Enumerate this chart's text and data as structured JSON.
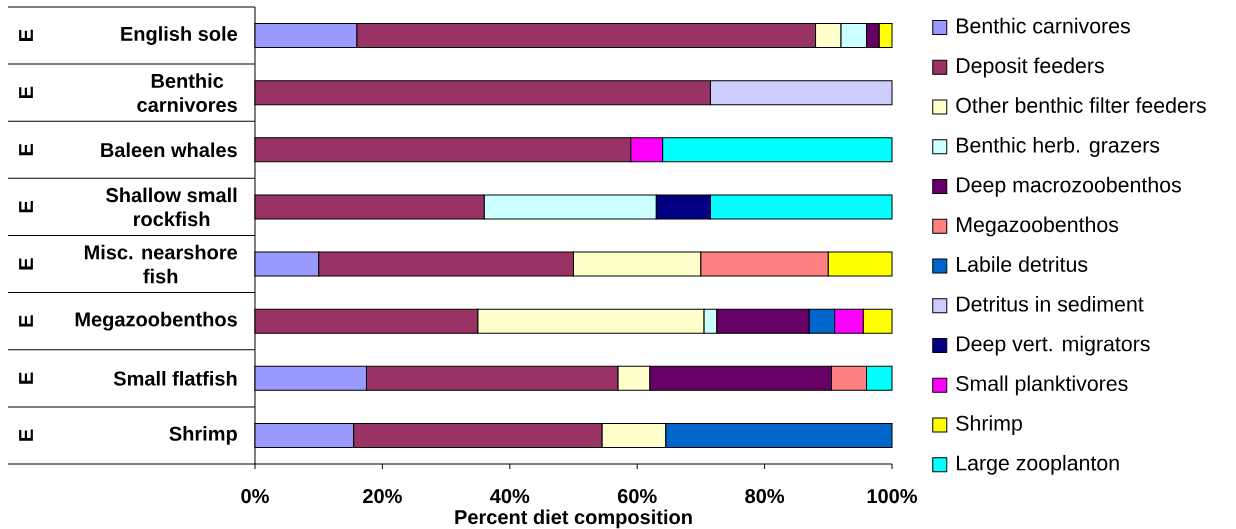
{
  "chart_data": {
    "type": "bar",
    "orientation": "horizontal",
    "stacked": true,
    "xlabel": "Percent diet composition",
    "categories": [
      "English sole",
      "Benthic carnivores",
      "Baleen whales",
      "Shallow small rockfish",
      "Misc. nearshore fish",
      "Megazoobenthos",
      "Small flatfish",
      "Shrimp"
    ],
    "series": [
      {
        "name": "Benthic carnivores",
        "color": "#9999ff",
        "values": [
          16,
          null,
          null,
          null,
          10,
          null,
          17.5,
          15.5
        ]
      },
      {
        "name": "Deposit feeders",
        "color": "#993366",
        "values": [
          72,
          71.5,
          59,
          36,
          40,
          35,
          39.5,
          39
        ]
      },
      {
        "name": "Other benthic filter feeders",
        "color": "#ffffcc",
        "values": [
          4,
          null,
          null,
          null,
          20,
          35.5,
          5,
          10
        ]
      },
      {
        "name": "Benthic herb. grazers",
        "color": "#ccffff",
        "values": [
          4,
          null,
          null,
          27,
          null,
          2,
          null,
          null
        ]
      },
      {
        "name": "Deep macrozoobenthos",
        "color": "#660066",
        "values": [
          2,
          null,
          null,
          null,
          null,
          14.5,
          28.5,
          null
        ]
      },
      {
        "name": "Megazoobenthos",
        "color": "#ff8080",
        "values": [
          null,
          null,
          null,
          null,
          20,
          null,
          5.5,
          null
        ]
      },
      {
        "name": "Labile detritus",
        "color": "#0066cc",
        "values": [
          null,
          null,
          null,
          null,
          null,
          4,
          null,
          35.5
        ]
      },
      {
        "name": "Detritus in sediment",
        "color": "#ccccff",
        "values": [
          null,
          28.5,
          null,
          null,
          null,
          null,
          null,
          null
        ]
      },
      {
        "name": "Deep vert. migrators",
        "color": "#000080",
        "values": [
          null,
          null,
          null,
          8.5,
          null,
          null,
          null,
          null
        ]
      },
      {
        "name": "Small planktivores",
        "color": "#ff00ff",
        "values": [
          null,
          null,
          5,
          null,
          null,
          4.5,
          null,
          null
        ]
      },
      {
        "name": "Shrimp",
        "color": "#ffff00",
        "values": [
          2,
          null,
          null,
          null,
          10,
          4.5,
          null,
          null
        ]
      },
      {
        "name": "Large zooplanton",
        "color": "#00ffff",
        "values": [
          null,
          null,
          36,
          28.5,
          null,
          null,
          4,
          null
        ]
      }
    ],
    "xlim": [
      0,
      100
    ],
    "xticks": [
      {
        "value": 0,
        "label": "0%"
      },
      {
        "value": 20,
        "label": "20%"
      },
      {
        "value": 40,
        "label": "40%"
      },
      {
        "value": 60,
        "label": "60%"
      },
      {
        "value": 80,
        "label": "80%"
      },
      {
        "value": 100,
        "label": "100%"
      }
    ],
    "legend": "right",
    "annotations": [
      "E",
      "E",
      "E",
      "E",
      "E",
      "E",
      "E",
      "E"
    ]
  }
}
